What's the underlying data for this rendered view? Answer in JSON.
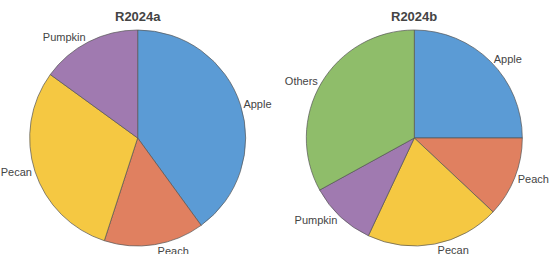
{
  "chart_data": [
    {
      "type": "pie",
      "title": "R2024a",
      "categories": [
        "Apple",
        "Peach",
        "Pecan",
        "Pumpkin"
      ],
      "values": [
        40,
        15,
        30,
        15
      ],
      "colors": [
        "#5B9BD5",
        "#E08060",
        "#F5C842",
        "#A07AB0"
      ]
    },
    {
      "type": "pie",
      "title": "R2024b",
      "categories": [
        "Apple",
        "Peach",
        "Pecan",
        "Pumpkin",
        "Others"
      ],
      "values": [
        25,
        12,
        20,
        10,
        33
      ],
      "colors": [
        "#5B9BD5",
        "#E08060",
        "#F5C842",
        "#A07AB0",
        "#8FBD6A"
      ]
    }
  ]
}
